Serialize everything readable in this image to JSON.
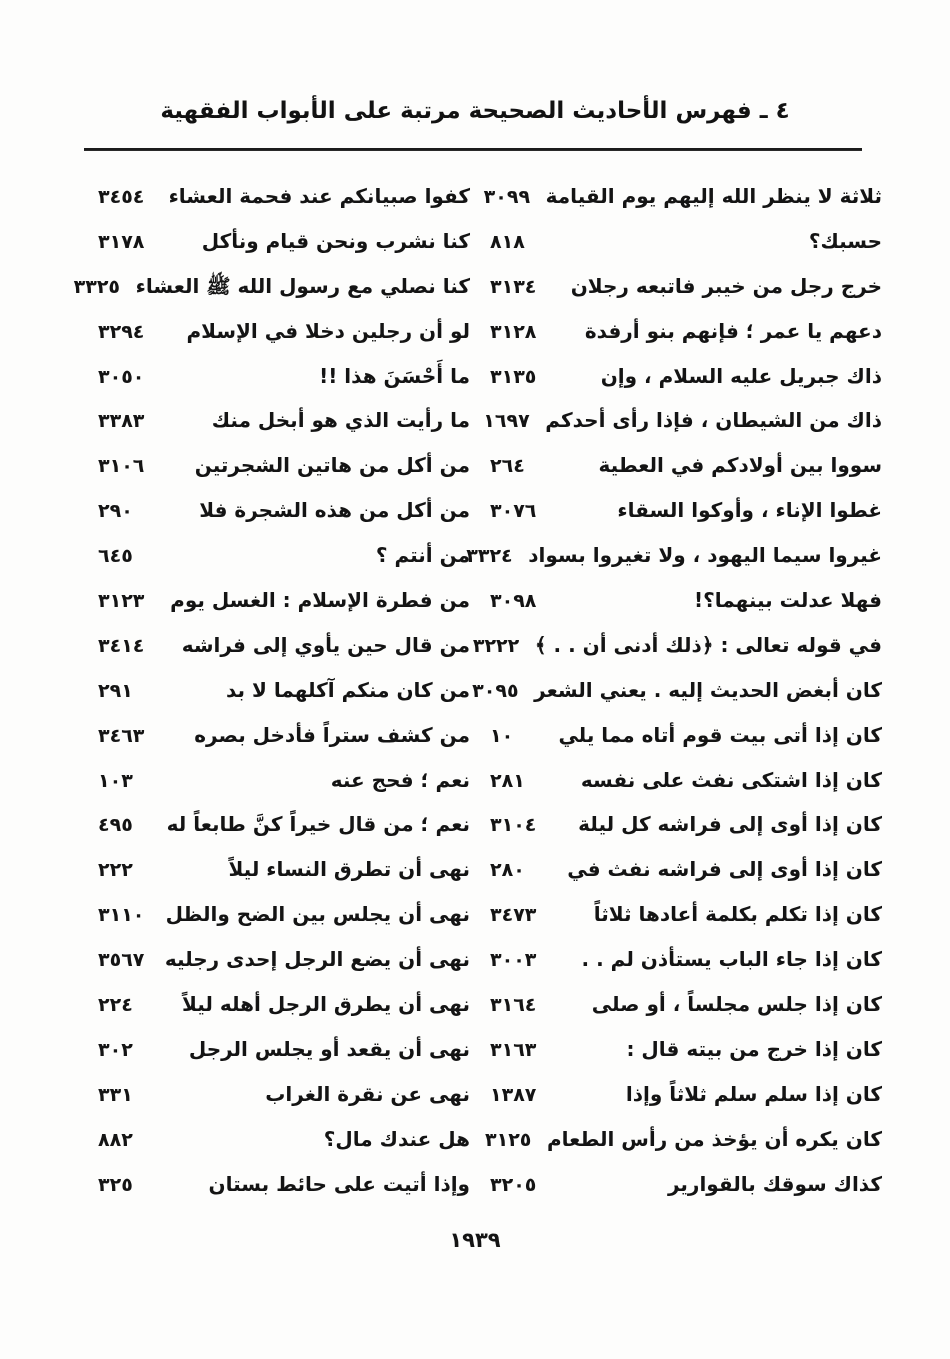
{
  "header": {
    "title": "٤ ـ فهرس الأحاديث الصحيحة مرتبة على الأبواب الفقهية"
  },
  "footer": {
    "page_number": "١٩٣٩"
  },
  "index": {
    "right_column": [
      {
        "text": "ثلاثة لا ينظر الله إليهم يوم القيامة",
        "ref": "٣٠٩٩"
      },
      {
        "text": "حسبك؟",
        "ref": "٨١٨"
      },
      {
        "text": "خرج رجل من خيبر فاتبعه رجلان",
        "ref": "٣١٣٤"
      },
      {
        "text": "دعهم يا عمر ؛ فإنهم بنو أرفدة",
        "ref": "٣١٢٨"
      },
      {
        "text": "ذاك جبريل عليه السلام ، وإن",
        "ref": "٣١٣٥"
      },
      {
        "text": "ذاك من الشيطان ، فإذا رأى أحدكم",
        "ref": "١٦٩٧"
      },
      {
        "text": "سووا بين أولادكم في العطية",
        "ref": "٢٦٤"
      },
      {
        "text": "غطوا الإناء ، وأوكوا السقاء",
        "ref": "٣٠٧٦"
      },
      {
        "text": "غيروا سيما اليهود ، ولا تغيروا بسواد",
        "ref": "٣٣٢٤"
      },
      {
        "text": "فهلا عدلت بينهما؟!",
        "ref": "٣٠٩٨"
      },
      {
        "text": "في قوله تعالى : ﴿ذلك أدنى أن . . ﴾",
        "ref": "٣٢٢٢"
      },
      {
        "text": "كان أبغض الحديث إليه . يعني الشعر",
        "ref": "٣٠٩٥"
      },
      {
        "text": "كان إذا أتى بيت قوم أتاه مما يلي",
        "ref": "١٠"
      },
      {
        "text": "كان إذا اشتكى نفث على نفسه",
        "ref": "٢٨١"
      },
      {
        "text": "كان إذا أوى إلى فراشه كل ليلة",
        "ref": "٣١٠٤"
      },
      {
        "text": "كان إذا أوى إلى فراشه نفث في",
        "ref": "٢٨٠"
      },
      {
        "text": "كان إذا تكلم بكلمة أعادها ثلاثاً",
        "ref": "٣٤٧٣"
      },
      {
        "text": "كان إذا جاء الباب يستأذن لم . .",
        "ref": "٣٠٠٣"
      },
      {
        "text": "كان إذا جلس مجلساً ، أو صلى",
        "ref": "٣١٦٤"
      },
      {
        "text": "كان إذا خرج من بيته قال :",
        "ref": "٣١٦٣"
      },
      {
        "text": "كان إذا سلم سلم ثلاثاً وإذا",
        "ref": "١٣٨٧"
      },
      {
        "text": "كان يكره أن يؤخذ من رأس الطعام",
        "ref": "٣١٢٥"
      },
      {
        "text": "كذاك سوقك بالقوارير",
        "ref": "٣٢٠٥"
      }
    ],
    "left_column": [
      {
        "text": "كفوا صبيانكم عند فحمة العشاء",
        "ref": "٣٤٥٤"
      },
      {
        "text": "كنا نشرب ونحن قيام ونأكل",
        "ref": "٣١٧٨"
      },
      {
        "text": "كنا نصلي مع رسول الله ﷺ العشاء",
        "ref": "٣٣٢٥"
      },
      {
        "text": "لو أن رجلين دخلا في الإسلام",
        "ref": "٣٢٩٤"
      },
      {
        "text": "ما أَحْسَنَ هذا !!",
        "ref": "٣٠٥٠"
      },
      {
        "text": "ما رأيت الذي هو أبخل منك",
        "ref": "٣٣٨٣"
      },
      {
        "text": "من أكل من هاتين الشجرتين",
        "ref": "٣١٠٦"
      },
      {
        "text": "من أكل من هذه الشجرة فلا",
        "ref": "٢٩٠"
      },
      {
        "text": "من أنتم ؟",
        "ref": "٦٤٥"
      },
      {
        "text": "من فطرة الإسلام : الغسل يوم",
        "ref": "٣١٢٣"
      },
      {
        "text": "من قال حين يأوي إلى فراشه",
        "ref": "٣٤١٤"
      },
      {
        "text": "من كان منكم آكلهما لا بد",
        "ref": "٢٩١"
      },
      {
        "text": "من كشف ستراً فأدخل بصره",
        "ref": "٣٤٦٣"
      },
      {
        "text": "نعم ؛ فحج عنه",
        "ref": "١٠٣"
      },
      {
        "text": "نعم ؛ من قال خيراً كنَّ طابعاً له",
        "ref": "٤٩٥"
      },
      {
        "text": "نهى أن تطرق النساء ليلاً",
        "ref": "٢٢٢"
      },
      {
        "text": "نهى أن يجلس بين الضح والظل",
        "ref": "٣١١٠"
      },
      {
        "text": "نهى أن يضع الرجل إحدى رجليه",
        "ref": "٣٥٦٧"
      },
      {
        "text": "نهى أن يطرق الرجل أهله ليلاً",
        "ref": "٢٢٤"
      },
      {
        "text": "نهى أن يقعد أو يجلس الرجل",
        "ref": "٣٠٢"
      },
      {
        "text": "نهى عن نقرة الغراب",
        "ref": "٣٣١"
      },
      {
        "text": "هل عندك مال؟",
        "ref": "٨٨٢"
      },
      {
        "text": "وإذا أتيت على حائط بستان",
        "ref": "٣٢٥"
      }
    ]
  }
}
